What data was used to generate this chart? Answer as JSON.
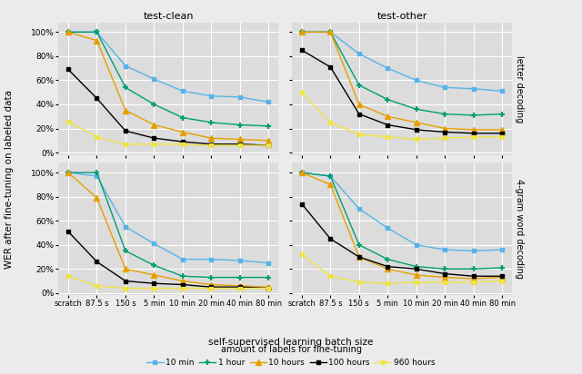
{
  "x_labels": [
    "scratch",
    "87.5 s",
    "150 s",
    "5 min",
    "10 min",
    "20 min",
    "40 min",
    "80 min"
  ],
  "col_titles": [
    "test-clean",
    "test-other"
  ],
  "row_titles": [
    "letter decoding",
    "4-gram word decoding"
  ],
  "series_labels": [
    "10 min",
    "1 hour",
    "10 hours",
    "100 hours",
    "960 hours"
  ],
  "series_colors": [
    "#56b4e9",
    "#009e73",
    "#e69f00",
    "#000000",
    "#f0e442"
  ],
  "series_markers": [
    "s",
    "+",
    "^",
    "s",
    "s"
  ],
  "data": {
    "letter_clean": {
      "10min": [
        100,
        100,
        72,
        61,
        51,
        47,
        46,
        42
      ],
      "1hour": [
        100,
        100,
        54,
        40,
        29,
        25,
        23,
        22
      ],
      "10hours": [
        100,
        93,
        35,
        23,
        17,
        12,
        11,
        10
      ],
      "100hours": [
        69,
        45,
        18,
        12,
        9,
        7,
        7,
        6
      ],
      "960hours": [
        26,
        13,
        7,
        7,
        7,
        6,
        6,
        6
      ]
    },
    "letter_other": {
      "10min": [
        100,
        100,
        82,
        70,
        60,
        54,
        53,
        51
      ],
      "1hour": [
        100,
        100,
        56,
        44,
        36,
        32,
        31,
        32
      ],
      "10hours": [
        100,
        100,
        40,
        30,
        25,
        20,
        19,
        19
      ],
      "100hours": [
        85,
        71,
        32,
        23,
        19,
        17,
        16,
        16
      ],
      "960hours": [
        50,
        25,
        15,
        13,
        11,
        12,
        13,
        13
      ]
    },
    "4gram_clean": {
      "10min": [
        100,
        97,
        55,
        41,
        28,
        28,
        27,
        25
      ],
      "1hour": [
        100,
        100,
        35,
        23,
        14,
        13,
        13,
        13
      ],
      "10hours": [
        100,
        79,
        20,
        15,
        10,
        7,
        6,
        5
      ],
      "100hours": [
        51,
        26,
        10,
        8,
        7,
        5,
        5,
        4
      ],
      "960hours": [
        14,
        6,
        4,
        4,
        4,
        4,
        4,
        4
      ]
    },
    "4gram_other": {
      "10min": [
        100,
        97,
        70,
        54,
        40,
        36,
        35,
        36
      ],
      "1hour": [
        100,
        97,
        40,
        28,
        22,
        20,
        20,
        21
      ],
      "10hours": [
        100,
        90,
        30,
        20,
        15,
        13,
        12,
        13
      ],
      "100hours": [
        74,
        45,
        30,
        22,
        20,
        16,
        14,
        14
      ],
      "960hours": [
        32,
        14,
        9,
        8,
        9,
        9,
        9,
        10
      ]
    }
  },
  "xlabel": "self-supervised learning batch size",
  "ylabel": "WER after fine-tuning on labeled data",
  "legend_title": "amount of labels for fine-tuning",
  "fig_bg": "#ebebeb",
  "panel_bg": "#dcdcdc",
  "grid_color": "white"
}
